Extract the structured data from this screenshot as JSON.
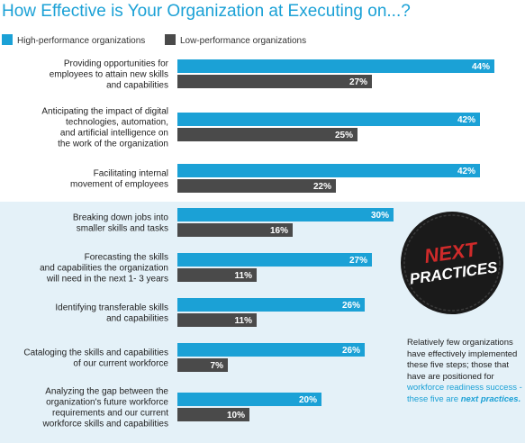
{
  "colors": {
    "high": "#1ba1d6",
    "low": "#4a4a4a",
    "accent": "#1ba1d6",
    "badge_text": "#cf2a2a",
    "panel_bg": "#e4f1f8"
  },
  "badge": {
    "line1": "NEXT",
    "line2": "PRACTICES"
  },
  "note": {
    "part1": "Relatively few organizations have effectively implemented these five steps; those that have are positioned for",
    "part2": "workforce readiness success - these five are",
    "part3": "next practices."
  },
  "chart_data": {
    "type": "bar",
    "orientation": "horizontal",
    "title": "How Effective is Your Organization at Executing on...?",
    "legend_position": "top-left",
    "grid": false,
    "xlim": [
      0,
      45
    ],
    "value_suffix": "%",
    "categories": [
      [
        "Providing opportunities for",
        "employees to attain new skills",
        "and capabilities"
      ],
      [
        "Anticipating the impact of digital",
        "technologies, automation,",
        "and artificial intelligence on",
        "the work of the organization"
      ],
      [
        "Facilitating internal",
        "movement of employees"
      ],
      [
        "Breaking down jobs into",
        "smaller skills and tasks"
      ],
      [
        "Forecasting the skills",
        "and capabilities the organization",
        "will need in the next 1- 3 years"
      ],
      [
        "Identifying transferable skills",
        "and capabilities"
      ],
      [
        "Cataloging the skills and capabilities",
        "of our current workforce"
      ],
      [
        "Analyzing the gap between the",
        "organization's future workforce",
        "requirements and our current",
        "workforce skills and capabilities"
      ]
    ],
    "series": [
      {
        "name": "High-performance organizations",
        "values": [
          44,
          42,
          42,
          30,
          27,
          26,
          26,
          20
        ]
      },
      {
        "name": "Low-performance organizations",
        "values": [
          27,
          25,
          22,
          16,
          11,
          11,
          7,
          10
        ]
      }
    ]
  }
}
